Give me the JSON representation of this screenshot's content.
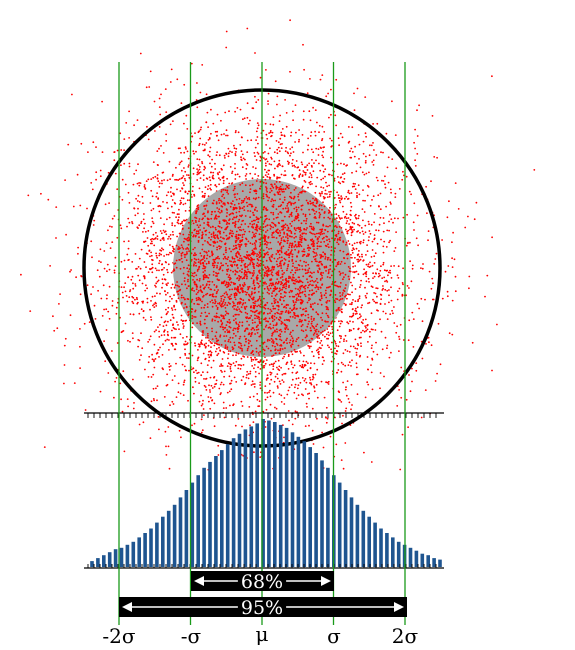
{
  "colors": {
    "points": "#ff0000",
    "inner_disc": "#a8a8a8",
    "outer_circle": "#000000",
    "sigma_lines": "#1a9a1a",
    "bars": "#1f5590",
    "bands": "#000000",
    "band_text": "#ffffff",
    "axis": "#000000"
  },
  "bands": {
    "one_sigma": "68%",
    "two_sigma": "95%"
  },
  "axis_labels": {
    "minus_two_sigma": "-2σ",
    "minus_sigma": "-σ",
    "mu": "μ",
    "sigma": "σ",
    "two_sigma": "2σ"
  },
  "chart_data": {
    "type": "bar",
    "x_ticks": [
      "-2σ",
      "-σ",
      "μ",
      "σ",
      "2σ"
    ],
    "x_tick_positions_sigma": [
      -2,
      -1,
      0,
      1,
      2
    ],
    "bar_heights_relative": [
      0.04,
      0.06,
      0.08,
      0.1,
      0.12,
      0.13,
      0.15,
      0.17,
      0.2,
      0.23,
      0.26,
      0.3,
      0.34,
      0.38,
      0.42,
      0.47,
      0.52,
      0.57,
      0.62,
      0.67,
      0.71,
      0.75,
      0.79,
      0.83,
      0.87,
      0.9,
      0.93,
      0.95,
      0.97,
      1.0,
      0.99,
      0.98,
      0.96,
      0.94,
      0.91,
      0.88,
      0.85,
      0.81,
      0.77,
      0.72,
      0.67,
      0.62,
      0.57,
      0.52,
      0.47,
      0.42,
      0.38,
      0.34,
      0.3,
      0.26,
      0.23,
      0.2,
      0.17,
      0.15,
      0.13,
      0.11,
      0.09,
      0.08,
      0.06,
      0.05
    ],
    "bands": [
      {
        "label": "68%",
        "from_sigma": -1,
        "to_sigma": 1
      },
      {
        "label": "95%",
        "from_sigma": -2,
        "to_sigma": 2
      }
    ]
  }
}
